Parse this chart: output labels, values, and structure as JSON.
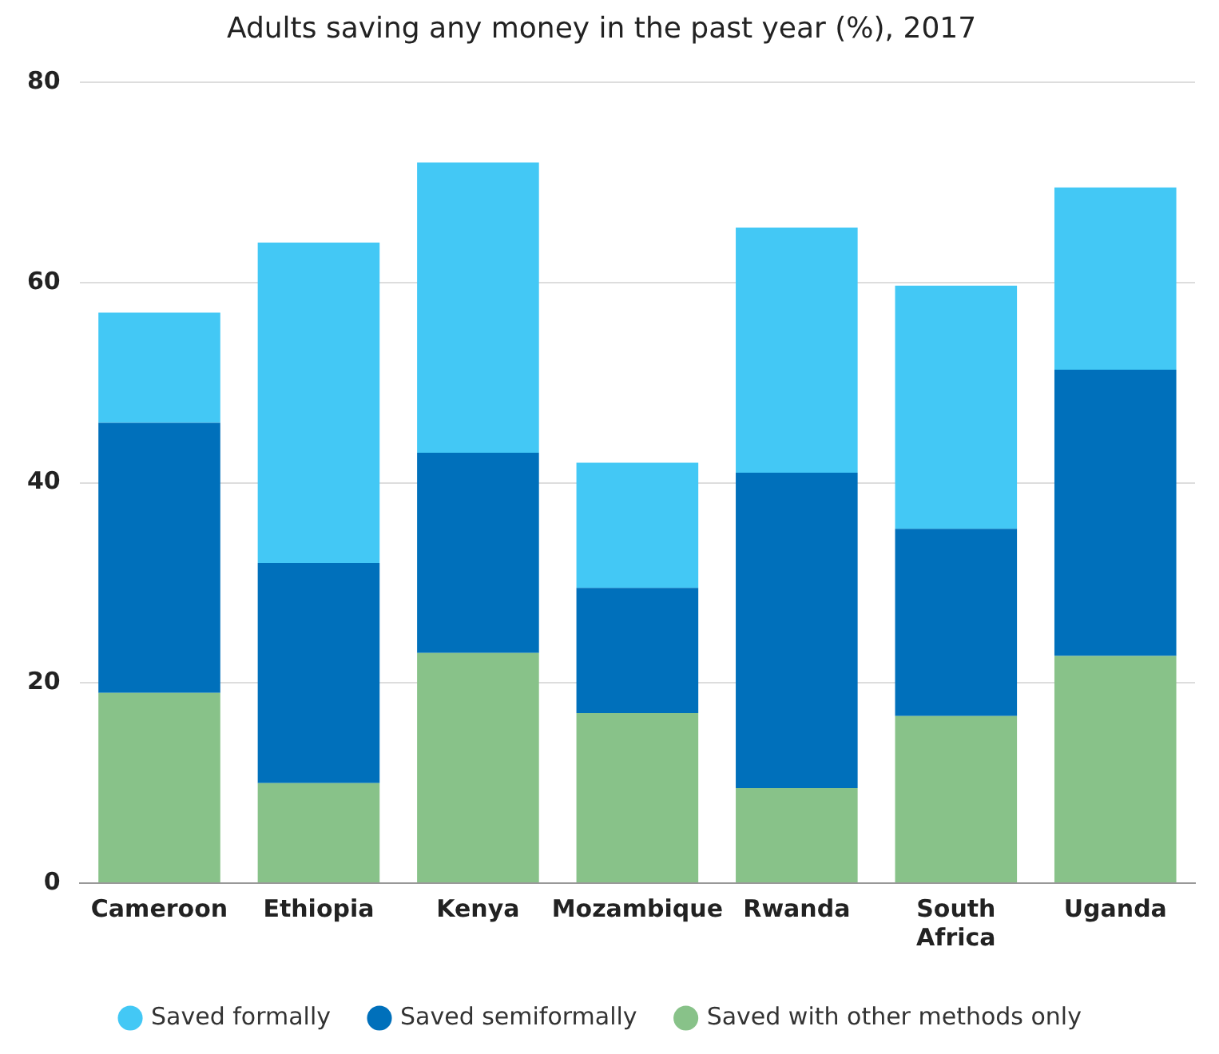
{
  "chart_data": {
    "type": "bar",
    "title": "Adults saving any money in the past year (%), 2017",
    "categories": [
      "Cameroon",
      "Ethiopia",
      "Kenya",
      "Mozambique",
      "Rwanda",
      "South Africa",
      "Uganda"
    ],
    "series": [
      {
        "name": "Saved with other methods only",
        "color": "#88c289",
        "values": [
          19,
          10,
          23,
          17,
          9.5,
          16.7,
          22.7
        ]
      },
      {
        "name": "Saved semiformally",
        "color": "#0070bb",
        "values": [
          27,
          22,
          20,
          12.5,
          31.5,
          18.7,
          28.6
        ]
      },
      {
        "name": "Saved formally",
        "color": "#43c8f5",
        "values": [
          11,
          32,
          29,
          12.5,
          24.5,
          24.3,
          18.2
        ]
      }
    ],
    "stacked": true,
    "ylim": [
      0,
      80
    ],
    "yticks": [
      0,
      20,
      40,
      60,
      80
    ],
    "grid": "y",
    "legend": "bottom",
    "marker": "circle"
  }
}
